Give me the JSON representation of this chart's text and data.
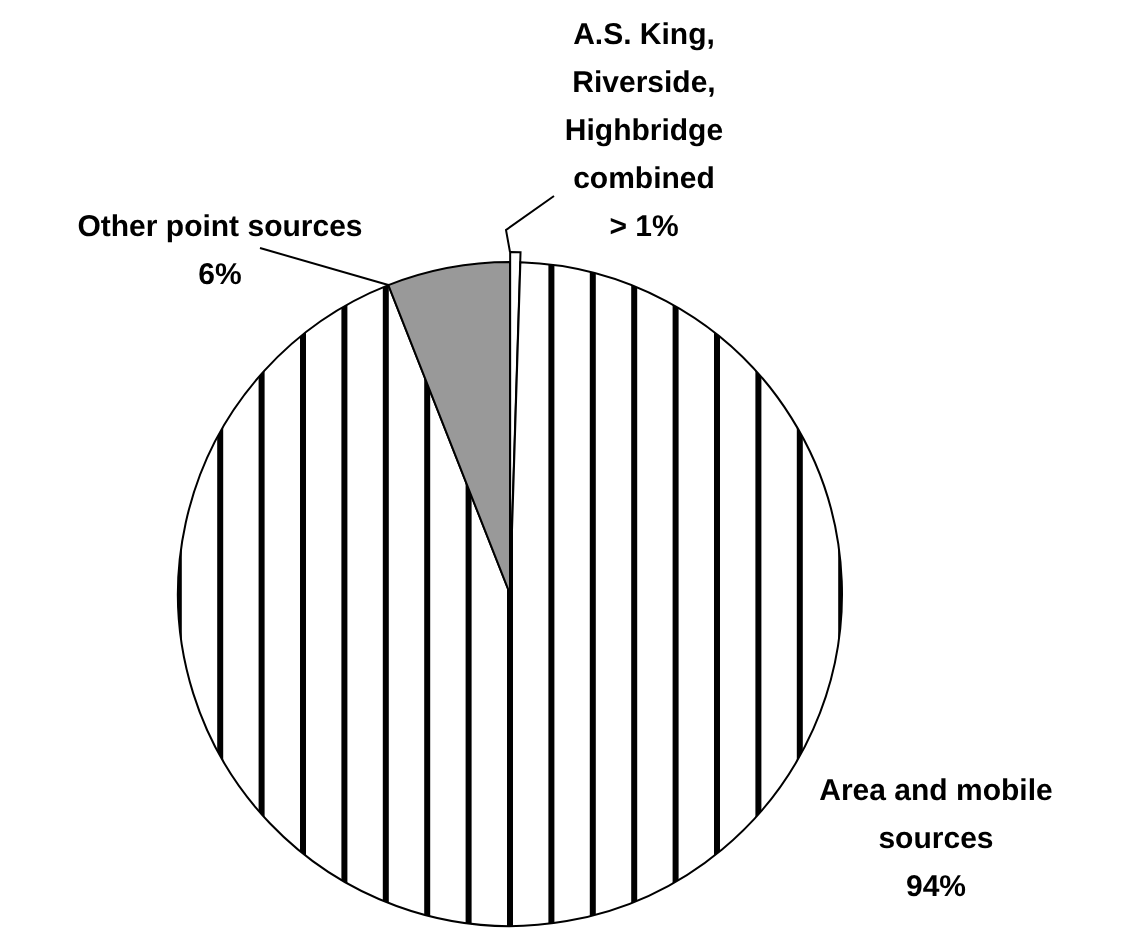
{
  "chart_data": {
    "type": "pie",
    "categories": [
      "A.S. King, Riverside, Highbridge combined",
      "Area and mobile sources",
      "Other point sources"
    ],
    "values": [
      0.5,
      94,
      6
    ],
    "colors": [
      "#ffffff",
      "#ffffff",
      "#999999"
    ],
    "value_labels": [
      "> 1%",
      "94%",
      "6%"
    ]
  }
}
